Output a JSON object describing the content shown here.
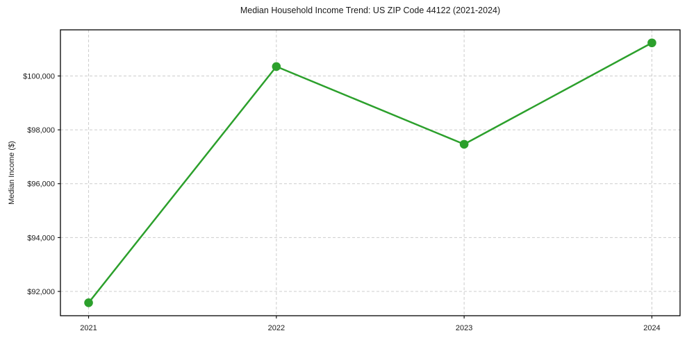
{
  "chart_data": {
    "type": "line",
    "title": "Median Household Income Trend: US ZIP Code 44122 (2021-2024)",
    "xlabel": "",
    "ylabel": "Median Income ($)",
    "x": [
      2021,
      2022,
      2023,
      2024
    ],
    "values": [
      91580,
      100350,
      97465,
      101230
    ],
    "xticks": {
      "values": [
        2021,
        2022,
        2023,
        2024
      ],
      "labels": [
        "2021",
        "2022",
        "2023",
        "2024"
      ]
    },
    "yticks": {
      "values": [
        92000,
        94000,
        96000,
        98000,
        100000
      ],
      "labels": [
        "$92,000",
        "$94,000",
        "$96,000",
        "$98,000",
        "$100,000"
      ]
    },
    "xlim": [
      2020.85,
      2024.15
    ],
    "ylim": [
      91098,
      101713
    ],
    "grid": true,
    "grid_style": "dashed",
    "legend": false,
    "colors": {
      "line": "#2ca02c",
      "marker": "#2ca02c",
      "grid": "#cccccc",
      "axis": "#000000",
      "text": "#1a1a1a",
      "background": "#ffffff"
    }
  }
}
